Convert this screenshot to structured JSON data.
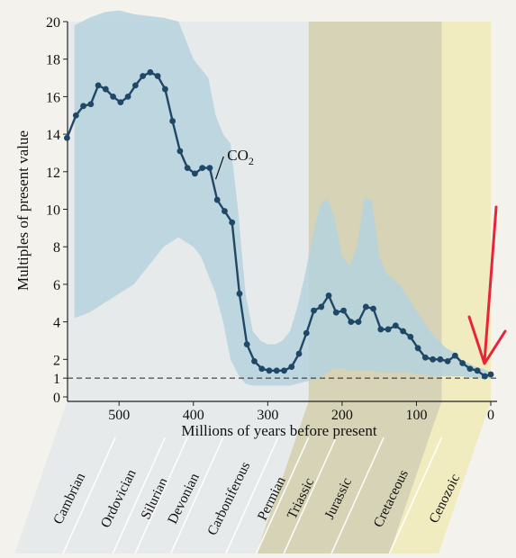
{
  "chart_data": {
    "type": "line",
    "xlabel": "Millions of years before present",
    "ylabel": "Multiples of present value",
    "xlim": [
      570,
      0
    ],
    "ylim": [
      0,
      20
    ],
    "x_ticks": [
      500,
      400,
      300,
      200,
      100,
      0
    ],
    "y_ticks": [
      0,
      1,
      2,
      4,
      6,
      8,
      10,
      12,
      14,
      16,
      18,
      20
    ],
    "reference_line": {
      "y": 1,
      "style": "dashed"
    },
    "series": [
      {
        "name": "CO2",
        "color": "#1f4766",
        "points": [
          [
            570,
            13.8
          ],
          [
            558,
            15.0
          ],
          [
            548,
            15.5
          ],
          [
            538,
            15.6
          ],
          [
            528,
            16.6
          ],
          [
            518,
            16.4
          ],
          [
            508,
            16.0
          ],
          [
            498,
            15.7
          ],
          [
            488,
            16.0
          ],
          [
            478,
            16.6
          ],
          [
            468,
            17.1
          ],
          [
            458,
            17.3
          ],
          [
            448,
            17.1
          ],
          [
            438,
            16.4
          ],
          [
            428,
            14.7
          ],
          [
            418,
            13.1
          ],
          [
            408,
            12.2
          ],
          [
            398,
            11.9
          ],
          [
            388,
            12.2
          ],
          [
            378,
            12.2
          ],
          [
            368,
            10.5
          ],
          [
            358,
            9.9
          ],
          [
            348,
            9.3
          ],
          [
            338,
            5.5
          ],
          [
            328,
            2.8
          ],
          [
            318,
            1.9
          ],
          [
            308,
            1.5
          ],
          [
            298,
            1.4
          ],
          [
            288,
            1.4
          ],
          [
            278,
            1.4
          ],
          [
            268,
            1.6
          ],
          [
            258,
            2.3
          ],
          [
            248,
            3.4
          ],
          [
            238,
            4.6
          ],
          [
            228,
            4.8
          ],
          [
            218,
            5.4
          ],
          [
            208,
            4.5
          ],
          [
            198,
            4.6
          ],
          [
            188,
            4.0
          ],
          [
            178,
            4.0
          ],
          [
            168,
            4.8
          ],
          [
            158,
            4.7
          ],
          [
            148,
            3.6
          ],
          [
            138,
            3.6
          ],
          [
            128,
            3.8
          ],
          [
            118,
            3.5
          ],
          [
            108,
            3.2
          ],
          [
            98,
            2.6
          ],
          [
            88,
            2.1
          ],
          [
            78,
            2.0
          ],
          [
            68,
            2.0
          ],
          [
            58,
            1.9
          ],
          [
            48,
            2.2
          ],
          [
            38,
            1.8
          ],
          [
            28,
            1.5
          ],
          [
            18,
            1.4
          ],
          [
            8,
            1.1
          ],
          [
            0,
            1.2
          ]
        ]
      }
    ],
    "uncertainty_band": {
      "upper": [
        [
          560,
          19.8
        ],
        [
          540,
          20.2
        ],
        [
          520,
          20.5
        ],
        [
          500,
          20.6
        ],
        [
          480,
          20.4
        ],
        [
          460,
          20.3
        ],
        [
          440,
          20.2
        ],
        [
          420,
          20.0
        ],
        [
          410,
          19.0
        ],
        [
          400,
          18.0
        ],
        [
          390,
          17.5
        ],
        [
          380,
          17.0
        ],
        [
          370,
          15.0
        ],
        [
          360,
          14.0
        ],
        [
          350,
          13.5
        ],
        [
          340,
          10.0
        ],
        [
          330,
          5.5
        ],
        [
          320,
          3.5
        ],
        [
          310,
          3.0
        ],
        [
          300,
          2.8
        ],
        [
          290,
          2.8
        ],
        [
          280,
          3.0
        ],
        [
          270,
          3.5
        ],
        [
          260,
          4.8
        ],
        [
          250,
          6.5
        ],
        [
          240,
          8.5
        ],
        [
          230,
          10.2
        ],
        [
          220,
          10.6
        ],
        [
          210,
          9.5
        ],
        [
          200,
          7.5
        ],
        [
          190,
          7.0
        ],
        [
          180,
          8.0
        ],
        [
          170,
          10.6
        ],
        [
          160,
          10.5
        ],
        [
          150,
          7.5
        ],
        [
          140,
          6.5
        ],
        [
          130,
          6.3
        ],
        [
          120,
          5.8
        ],
        [
          110,
          5.2
        ],
        [
          100,
          4.6
        ],
        [
          90,
          4.0
        ],
        [
          80,
          3.4
        ],
        [
          70,
          3.0
        ],
        [
          60,
          2.6
        ],
        [
          50,
          2.4
        ],
        [
          40,
          2.0
        ],
        [
          30,
          1.8
        ],
        [
          20,
          1.6
        ],
        [
          10,
          1.5
        ],
        [
          0,
          1.3
        ]
      ],
      "lower": [
        [
          0,
          1.0
        ],
        [
          10,
          1.0
        ],
        [
          20,
          1.0
        ],
        [
          30,
          1.05
        ],
        [
          40,
          1.1
        ],
        [
          50,
          1.1
        ],
        [
          60,
          1.1
        ],
        [
          70,
          1.1
        ],
        [
          80,
          1.1
        ],
        [
          90,
          1.2
        ],
        [
          100,
          1.2
        ],
        [
          110,
          1.3
        ],
        [
          120,
          1.3
        ],
        [
          130,
          1.3
        ],
        [
          140,
          1.3
        ],
        [
          150,
          1.3
        ],
        [
          160,
          1.4
        ],
        [
          170,
          1.4
        ],
        [
          180,
          1.4
        ],
        [
          190,
          1.4
        ],
        [
          200,
          1.5
        ],
        [
          210,
          1.5
        ],
        [
          220,
          1.3
        ],
        [
          230,
          1.0
        ],
        [
          240,
          0.9
        ],
        [
          250,
          0.8
        ],
        [
          260,
          0.7
        ],
        [
          270,
          0.6
        ],
        [
          280,
          0.6
        ],
        [
          290,
          0.6
        ],
        [
          300,
          0.6
        ],
        [
          310,
          0.6
        ],
        [
          320,
          0.6
        ],
        [
          330,
          0.7
        ],
        [
          340,
          1.2
        ],
        [
          350,
          2.0
        ],
        [
          360,
          4.0
        ],
        [
          370,
          5.5
        ],
        [
          380,
          6.5
        ],
        [
          390,
          7.5
        ],
        [
          400,
          8.0
        ],
        [
          420,
          8.5
        ],
        [
          440,
          8.0
        ],
        [
          460,
          7.0
        ],
        [
          480,
          6.0
        ],
        [
          500,
          5.5
        ],
        [
          520,
          5.0
        ],
        [
          540,
          4.5
        ],
        [
          560,
          4.2
        ]
      ]
    },
    "annotations": [
      {
        "text": "CO",
        "subscript": "2",
        "x": 340,
        "y": 13.0
      }
    ],
    "periods": [
      {
        "name": "Cambrian",
        "start": 570,
        "end": 505
      },
      {
        "name": "Ordovician",
        "start": 505,
        "end": 438
      },
      {
        "name": "Silurian",
        "start": 438,
        "end": 408
      },
      {
        "name": "Devonian",
        "start": 408,
        "end": 360
      },
      {
        "name": "Carboniferous",
        "start": 360,
        "end": 286
      },
      {
        "name": "Permian",
        "start": 286,
        "end": 245
      },
      {
        "name": "Triassic",
        "start": 245,
        "end": 208
      },
      {
        "name": "Jurassic",
        "start": 208,
        "end": 144
      },
      {
        "name": "Cretaceous",
        "start": 144,
        "end": 66
      },
      {
        "name": "Cenozoic",
        "start": 66,
        "end": 0
      }
    ],
    "grid": false,
    "colors": {
      "band": "#b5d2de",
      "paleozoic_column": "#e7eaeb",
      "mesozoic_column": "#d6d3b6",
      "cenozoic_column": "#f0ecc0",
      "marker_arrow": "#e8243a"
    }
  }
}
